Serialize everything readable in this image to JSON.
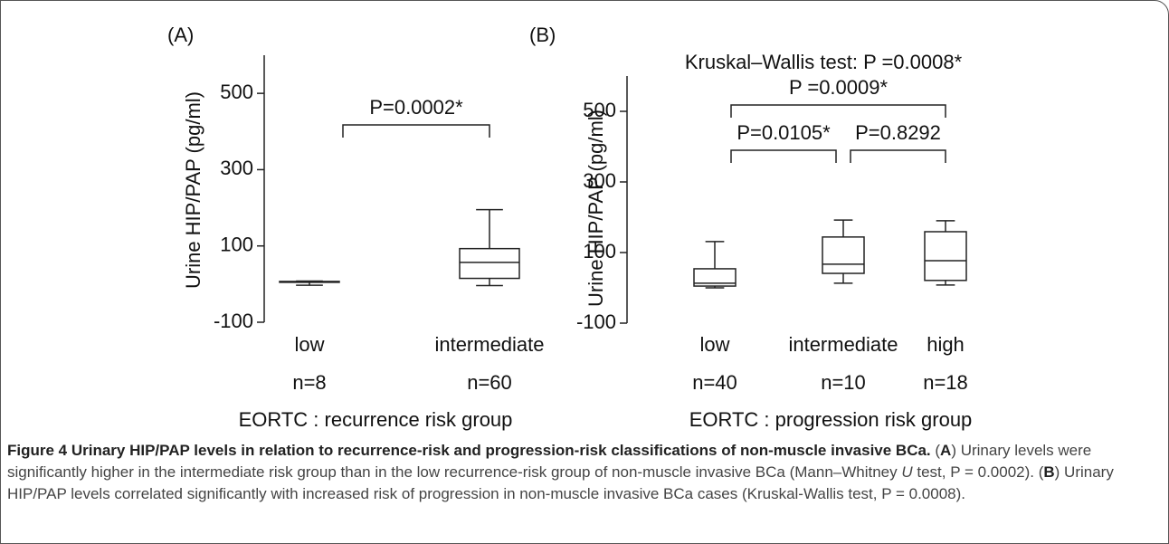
{
  "chart_data": [
    {
      "type": "box",
      "panel_label": "(A)",
      "y_label": "Urine HIP/PAP (pg/ml)",
      "x_label": "EORTC : recurrence risk group",
      "categories": [
        "low",
        "intermediate"
      ],
      "n_labels": [
        "n=8",
        "n=60"
      ],
      "boxes": [
        {
          "min": -3,
          "q1": 5,
          "median": 6,
          "q3": 7,
          "max": 8
        },
        {
          "min": -4,
          "q1": 15,
          "median": 57,
          "q3": 93,
          "max": 195
        }
      ],
      "ylim": [
        -100,
        600
      ],
      "yticks": [
        -100,
        100,
        300,
        500
      ],
      "comparisons": [
        {
          "text": "P=0.0002*",
          "from": 0,
          "to": 1
        }
      ]
    },
    {
      "type": "box",
      "panel_label": "(B)",
      "subtitle": "Kruskal–Wallis test: P =0.0008*",
      "y_label": "Urine HIP/PAP (pg/ml)",
      "x_label": "EORTC : progression risk group",
      "categories": [
        "low",
        "intermediate",
        "high"
      ],
      "n_labels": [
        "n=40",
        "n=10",
        "n=18"
      ],
      "boxes": [
        {
          "min": 0,
          "q1": 5,
          "median": 13,
          "q3": 54,
          "max": 131
        },
        {
          "min": 13,
          "q1": 41,
          "median": 67,
          "q3": 144,
          "max": 192
        },
        {
          "min": 8,
          "q1": 21,
          "median": 77,
          "q3": 159,
          "max": 190
        }
      ],
      "ylim": [
        -100,
        600
      ],
      "yticks": [
        -100,
        100,
        300,
        500
      ],
      "comparisons": [
        {
          "text": "P =0.0009*",
          "from": 0,
          "to": 2
        },
        {
          "text": "P=0.0105*",
          "from": 0,
          "to": 1
        },
        {
          "text": "P=0.8292",
          "from": 1,
          "to": 2
        }
      ]
    }
  ],
  "caption": [
    {
      "text": "Figure 4 Urinary HIP/PAP levels in relation to recurrence-risk and progression-risk classifications of non-muscle invasive BCa.",
      "style": "bold"
    },
    {
      "text": " (",
      "style": "normal"
    },
    {
      "text": "A",
      "style": "bold"
    },
    {
      "text": ") Urinary levels were significantly higher in the intermediate risk group than in the low recurrence-risk group of non-muscle invasive BCa (Mann–Whitney ",
      "style": "normal"
    },
    {
      "text": "U",
      "style": "italic"
    },
    {
      "text": " test, P = 0.0002). (",
      "style": "normal"
    },
    {
      "text": "B",
      "style": "bold"
    },
    {
      "text": ") Urinary HIP/PAP levels correlated significantly with increased risk of progression in non-muscle invasive BCa cases (Kruskal-Wallis test, P = 0.0008).",
      "style": "normal"
    }
  ]
}
